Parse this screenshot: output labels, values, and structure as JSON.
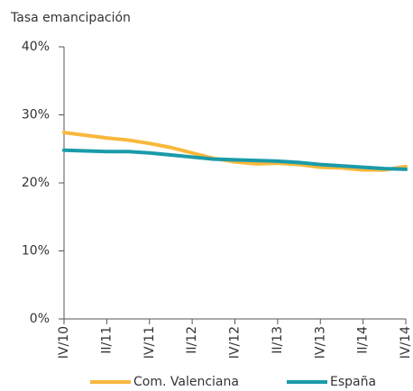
{
  "chart_data": {
    "type": "line",
    "y_label": "Tasa emancipación",
    "categories": [
      "IV/10",
      null,
      "II/11",
      null,
      "IV/11",
      null,
      "II/12",
      null,
      "IV/12",
      null,
      "II/13",
      null,
      "IV/13",
      null,
      "II/14",
      null,
      "IV/14"
    ],
    "series": [
      {
        "name": "Com. Valenciana",
        "color": "#f8b83c",
        "values": [
          27.4,
          27.0,
          26.6,
          26.3,
          25.8,
          25.2,
          24.4,
          23.6,
          23.1,
          22.8,
          22.9,
          22.7,
          22.3,
          22.2,
          21.9,
          21.9,
          22.4
        ]
      },
      {
        "name": "España",
        "color": "#1a9ba9",
        "values": [
          24.8,
          24.7,
          24.6,
          24.6,
          24.4,
          24.1,
          23.8,
          23.5,
          23.4,
          23.3,
          23.2,
          23.0,
          22.7,
          22.5,
          22.3,
          22.1,
          22.0
        ]
      }
    ],
    "ylim": [
      0,
      40
    ],
    "yticks": [
      {
        "value": 0,
        "label": "0%"
      },
      {
        "value": 10,
        "label": "10%"
      },
      {
        "value": 20,
        "label": "20%"
      },
      {
        "value": 30,
        "label": "30%"
      },
      {
        "value": 40,
        "label": "40%"
      }
    ],
    "grid": false,
    "legend": "bottom"
  }
}
